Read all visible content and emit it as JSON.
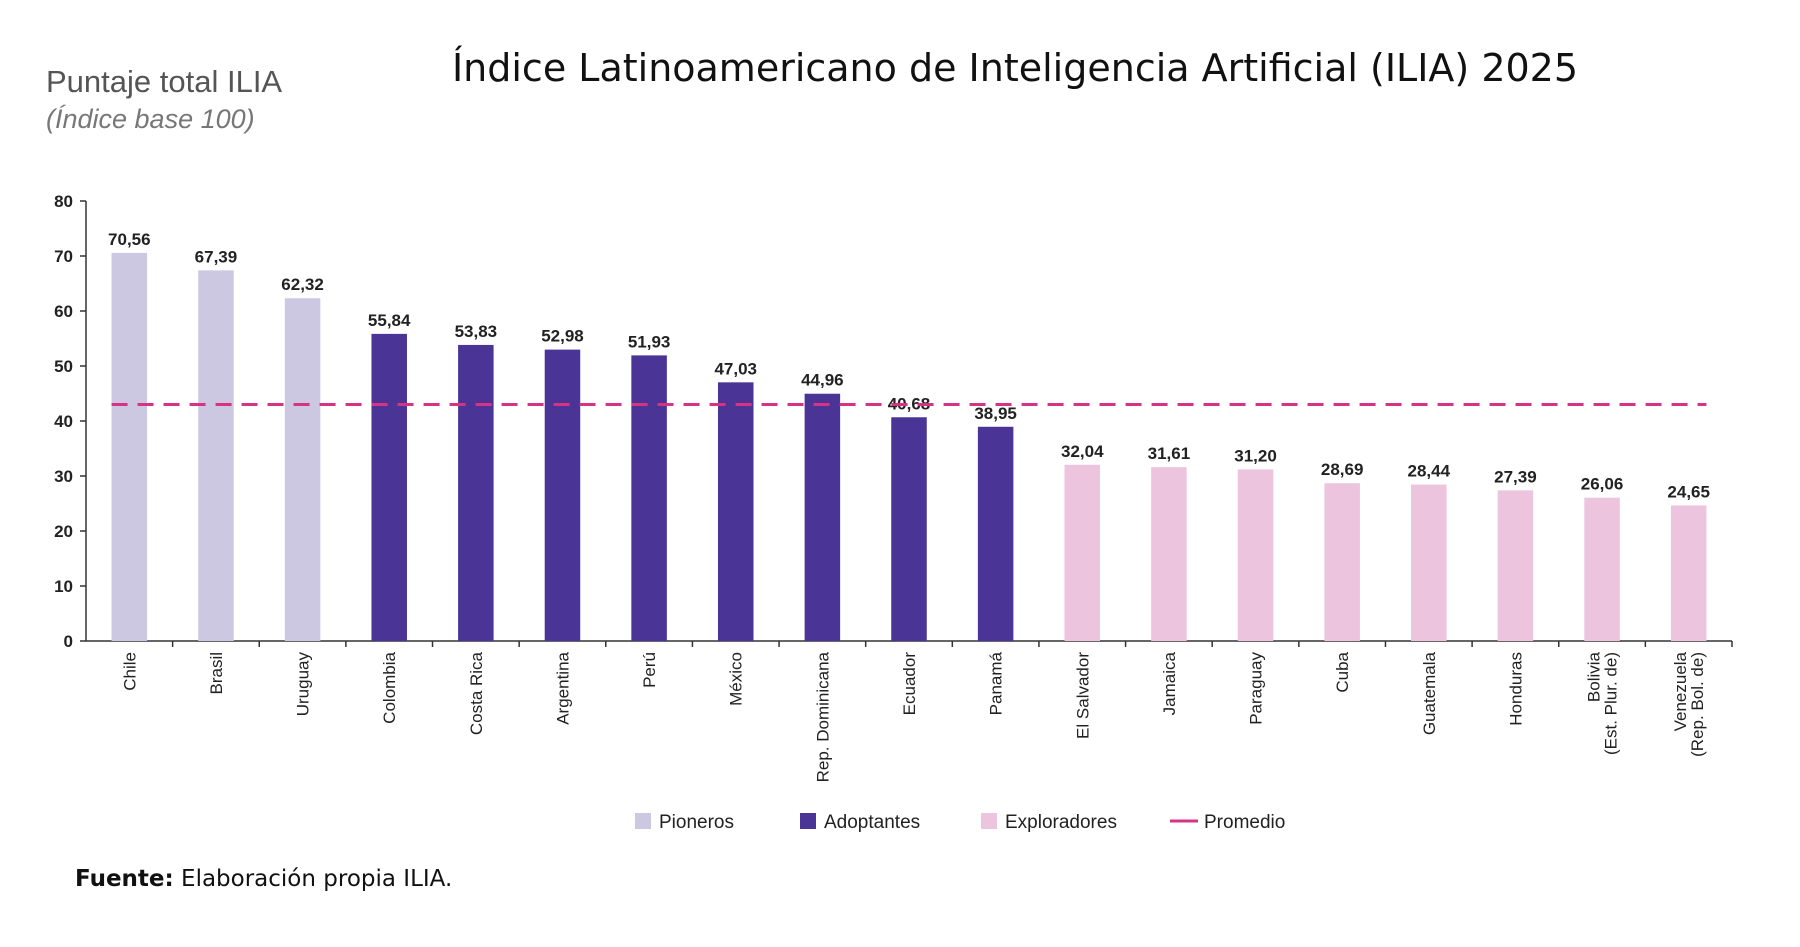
{
  "header": {
    "subtitle": "Puntaje total ILIA",
    "subtitle_note": "(Índice base 100)",
    "title": "Índice Latinoamericano de Inteligencia Artificial (ILIA) 2025"
  },
  "footer": {
    "source_label": "Fuente:",
    "source_text": "Elaboración propia ILIA."
  },
  "chart_data": {
    "type": "bar",
    "title": "Índice Latinoamericano de Inteligencia Artificial (ILIA) 2025",
    "ylabel": "Puntaje total ILIA",
    "ylim": [
      0,
      80
    ],
    "yticks": [
      0,
      10,
      20,
      30,
      40,
      50,
      60,
      70,
      80
    ],
    "grid": false,
    "legend_position": "bottom",
    "categories": [
      [
        "Chile"
      ],
      [
        "Brasil"
      ],
      [
        "Uruguay"
      ],
      [
        "Colombia"
      ],
      [
        "Costa Rica"
      ],
      [
        "Argentina"
      ],
      [
        "Perú"
      ],
      [
        "México"
      ],
      [
        "Rep. Dominicana"
      ],
      [
        "Ecuador"
      ],
      [
        "Panamá"
      ],
      [
        "El Salvador"
      ],
      [
        "Jamaica"
      ],
      [
        "Paraguay"
      ],
      [
        "Cuba"
      ],
      [
        "Guatemala"
      ],
      [
        "Honduras"
      ],
      [
        "Bolivia",
        "(Est. Plur. de)"
      ],
      [
        "Venezuela",
        "(Rep. Bol. de)"
      ]
    ],
    "values": [
      70.56,
      67.39,
      62.32,
      55.84,
      53.83,
      52.98,
      51.93,
      47.03,
      44.96,
      40.68,
      38.95,
      32.04,
      31.61,
      31.2,
      28.69,
      28.44,
      27.39,
      26.06,
      24.65
    ],
    "value_labels": [
      "70,56",
      "67,39",
      "62,32",
      "55,84",
      "53,83",
      "52,98",
      "51,93",
      "47,03",
      "44,96",
      "40,68",
      "38,95",
      "32,04",
      "31,61",
      "31,20",
      "28,69",
      "28,44",
      "27,39",
      "26,06",
      "24,65"
    ],
    "groups": [
      "Pioneros",
      "Pioneros",
      "Pioneros",
      "Adoptantes",
      "Adoptantes",
      "Adoptantes",
      "Adoptantes",
      "Adoptantes",
      "Adoptantes",
      "Adoptantes",
      "Adoptantes",
      "Exploradores",
      "Exploradores",
      "Exploradores",
      "Exploradores",
      "Exploradores",
      "Exploradores",
      "Exploradores",
      "Exploradores"
    ],
    "group_colors": {
      "Pioneros": "#cdc8e1",
      "Adoptantes": "#4a3596",
      "Exploradores": "#ecc4dd"
    },
    "average": {
      "value": 43,
      "color": "#d63384"
    },
    "legend": [
      {
        "label": "Pioneros",
        "color": "#cdc8e1",
        "kind": "box"
      },
      {
        "label": "Adoptantes",
        "color": "#4a3596",
        "kind": "box"
      },
      {
        "label": "Exploradores",
        "color": "#ecc4dd",
        "kind": "box"
      },
      {
        "label": "Promedio",
        "color": "#d63384",
        "kind": "line"
      }
    ]
  }
}
